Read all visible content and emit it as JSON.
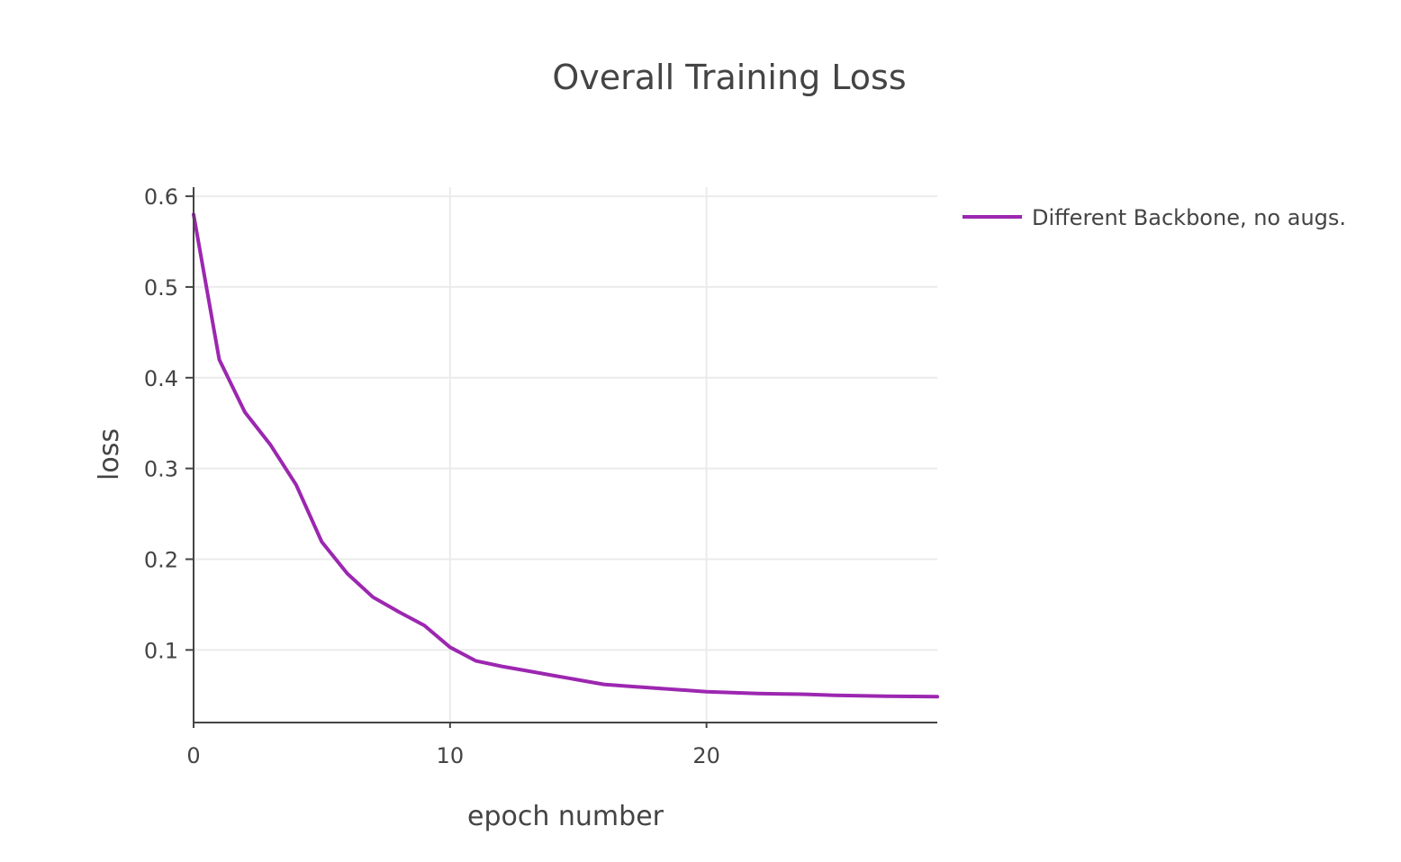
{
  "chart_data": {
    "type": "line",
    "title": "Overall Training Loss",
    "xlabel": "epoch number",
    "ylabel": "loss",
    "xlim": [
      0,
      29
    ],
    "ylim": [
      0.02,
      0.61
    ],
    "x_ticks": [
      0,
      10,
      20
    ],
    "x_tick_labels": [
      "0",
      "10",
      "20"
    ],
    "y_ticks": [
      0.1,
      0.2,
      0.3,
      0.4,
      0.5,
      0.6
    ],
    "y_tick_labels": [
      "0.1",
      "0.2",
      "0.3",
      "0.4",
      "0.5",
      "0.6"
    ],
    "grid": true,
    "legend_position": "top-right",
    "series": [
      {
        "name": "Different Backbone, no augs.",
        "color": "#9c27b0",
        "x": [
          0,
          1,
          2,
          3,
          4,
          5,
          6,
          7,
          8,
          9,
          10,
          11,
          12,
          13,
          14,
          15,
          16,
          17,
          18,
          19,
          20,
          21,
          22,
          23,
          24,
          25,
          26,
          27,
          28,
          29
        ],
        "y": [
          0.58,
          0.42,
          0.362,
          0.326,
          0.282,
          0.219,
          0.184,
          0.158,
          0.142,
          0.127,
          0.103,
          0.088,
          0.082,
          0.077,
          0.072,
          0.067,
          0.062,
          0.06,
          0.058,
          0.056,
          0.054,
          0.053,
          0.052,
          0.0515,
          0.051,
          0.05,
          0.0495,
          0.049,
          0.0488,
          0.0485
        ]
      }
    ]
  }
}
